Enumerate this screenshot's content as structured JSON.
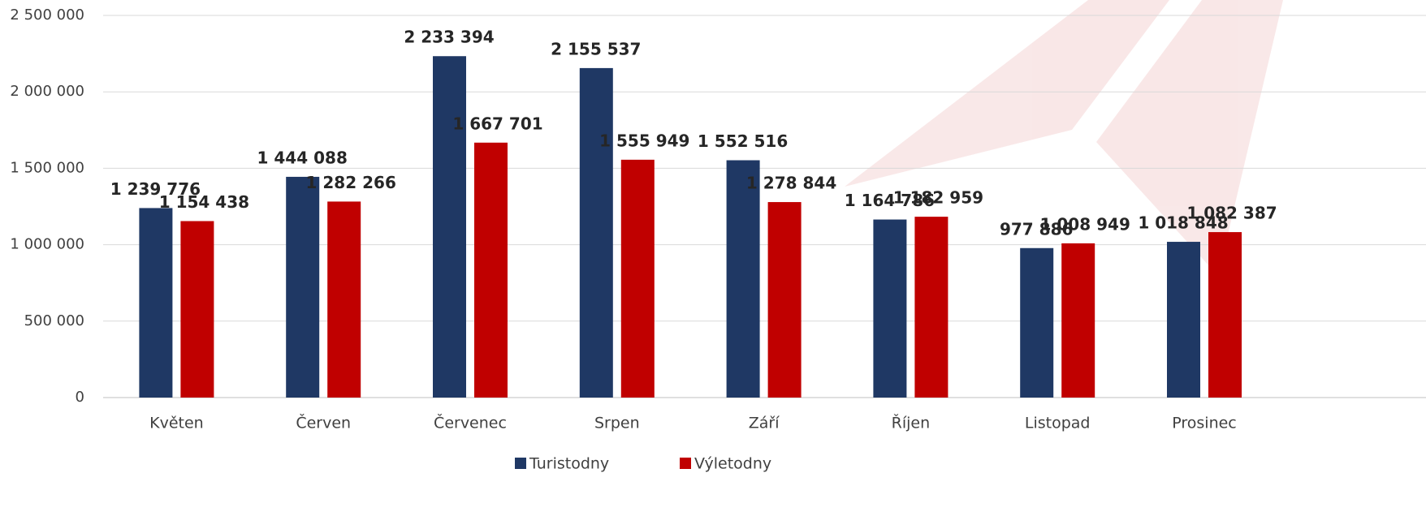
{
  "chart_data": {
    "type": "bar",
    "categories": [
      "Květen",
      "Červen",
      "Červenec",
      "Srpen",
      "Září",
      "Říjen",
      "Listopad",
      "Prosinec"
    ],
    "series": [
      {
        "name": "Turistodny",
        "color": "#1f3864",
        "values": [
          1239776,
          1444088,
          2233394,
          2155537,
          1552516,
          1164786,
          977886,
          1018848
        ],
        "value_labels": [
          "1 239 776",
          "1 444 088",
          "2 233 394",
          "2 155 537",
          "1 552 516",
          "1 164 786",
          "977 886",
          "1 018 848"
        ]
      },
      {
        "name": "Výletodny",
        "color": "#c00000",
        "values": [
          1154438,
          1282266,
          1667701,
          1555949,
          1278844,
          1182959,
          1008949,
          1082387
        ],
        "value_labels": [
          "1 154 438",
          "1 282 266",
          "1 667 701",
          "1 555 949",
          "1 278 844",
          "1 182 959",
          "1 008 949",
          "1 082 387"
        ]
      }
    ],
    "ylim": [
      0,
      2500000
    ],
    "yticks": [
      0,
      {
        "value": 500000,
        "label": "500 000"
      },
      {
        "value": 1000000,
        "label": "1 000 000"
      },
      {
        "value": 1500000,
        "label": "1 500 000"
      },
      {
        "value": 2000000,
        "label": "2 000 000"
      },
      {
        "value": 2500000,
        "label": "2 500 000"
      }
    ],
    "grid": true,
    "legend": "bottom"
  }
}
